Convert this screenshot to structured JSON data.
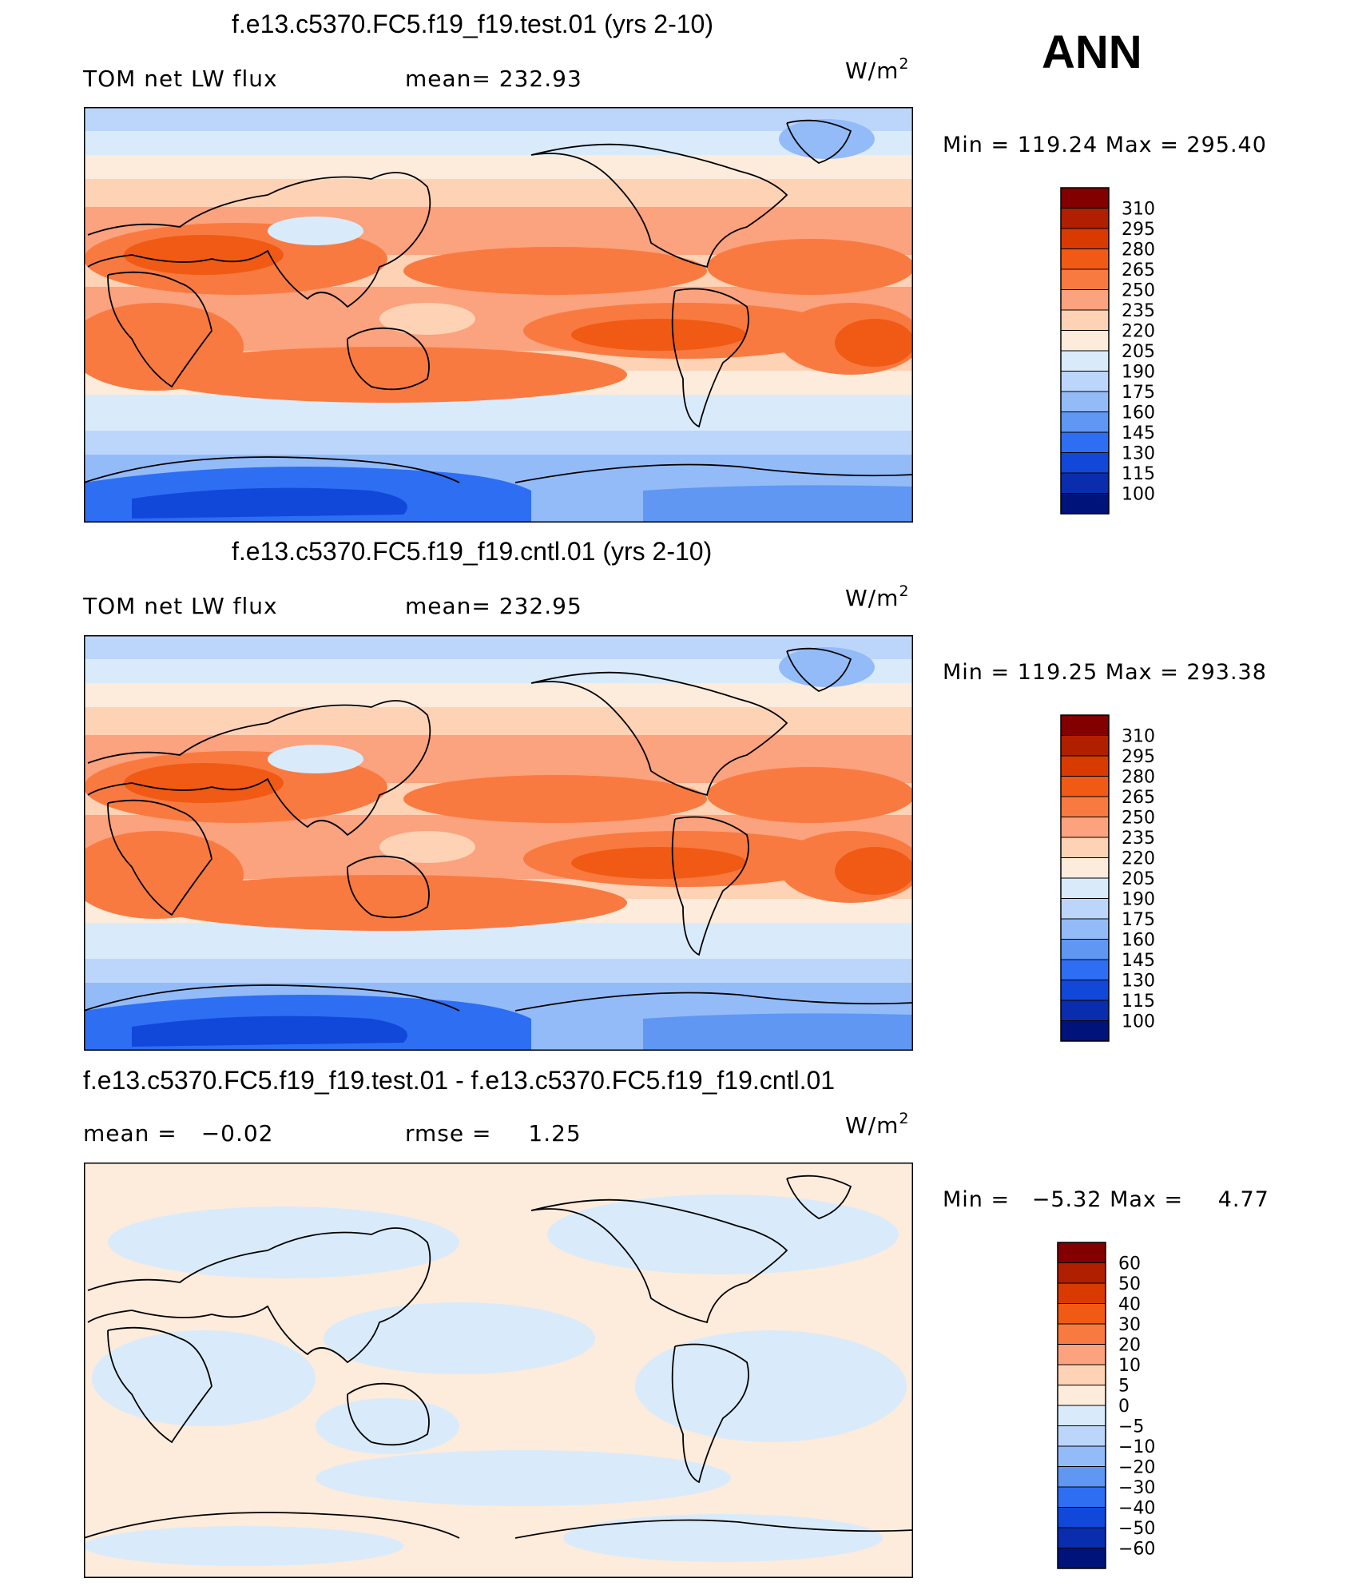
{
  "season": "ANN",
  "chart_data": [
    {
      "type": "heatmap",
      "title": "f.e13.c5370.FC5.f19_f19.test.01 (yrs 2-10)",
      "variable": "TOM net LW flux",
      "stat1_label": "mean=",
      "stat1_value": "232.93",
      "units": "W/m",
      "units_exp": "2",
      "min_label": "Min  =",
      "min_value": "119.24",
      "max_label": "Max  =",
      "max_value": "295.40",
      "contour_levels": [
        "310",
        "295",
        "280",
        "265",
        "250",
        "235",
        "220",
        "205",
        "190",
        "175",
        "160",
        "145",
        "130",
        "115",
        "100"
      ],
      "colorbar_colors": [
        "#820000",
        "#b01f00",
        "#d93a00",
        "#f05a14",
        "#f97a40",
        "#fba27e",
        "#fdd2b5",
        "#fdebdb",
        "#d9ebfb",
        "#bcd6fb",
        "#93bbf7",
        "#5f97f2",
        "#2e6ef2",
        "#1148d9",
        "#0a2dad",
        "#00137a"
      ]
    },
    {
      "type": "heatmap",
      "title": "f.e13.c5370.FC5.f19_f19.cntl.01 (yrs 2-10)",
      "variable": "TOM net LW flux",
      "stat1_label": "mean=",
      "stat1_value": "232.95",
      "units": "W/m",
      "units_exp": "2",
      "min_label": "Min  =",
      "min_value": "119.25",
      "max_label": "Max  =",
      "max_value": "293.38",
      "contour_levels": [
        "310",
        "295",
        "280",
        "265",
        "250",
        "235",
        "220",
        "205",
        "190",
        "175",
        "160",
        "145",
        "130",
        "115",
        "100"
      ],
      "colorbar_colors": [
        "#820000",
        "#b01f00",
        "#d93a00",
        "#f05a14",
        "#f97a40",
        "#fba27e",
        "#fdd2b5",
        "#fdebdb",
        "#d9ebfb",
        "#bcd6fb",
        "#93bbf7",
        "#5f97f2",
        "#2e6ef2",
        "#1148d9",
        "#0a2dad",
        "#00137a"
      ]
    },
    {
      "type": "heatmap",
      "title": "f.e13.c5370.FC5.f19_f19.test.01 - f.e13.c5370.FC5.f19_f19.cntl.01",
      "stat1_label": "mean  =",
      "stat1_value": "−0.02",
      "stat2_label": "rmse  =",
      "stat2_value": "1.25",
      "units": "W/m",
      "units_exp": "2",
      "min_label": "Min  =",
      "min_value": "−5.32",
      "max_label": "Max  =",
      "max_value": "4.77",
      "contour_levels": [
        "60",
        "50",
        "40",
        "30",
        "20",
        "10",
        "5",
        "0",
        "−5",
        "−10",
        "−20",
        "−30",
        "−40",
        "−50",
        "−60"
      ],
      "colorbar_colors": [
        "#820000",
        "#b01f00",
        "#d93a00",
        "#f05a14",
        "#f97a40",
        "#fba27e",
        "#fdd2b5",
        "#fdebdb",
        "#d9ebfb",
        "#bcd6fb",
        "#93bbf7",
        "#5f97f2",
        "#2e6ef2",
        "#1148d9",
        "#0a2dad",
        "#00137a"
      ]
    }
  ]
}
